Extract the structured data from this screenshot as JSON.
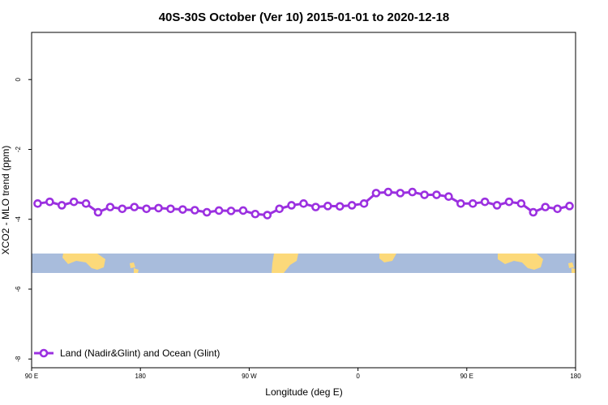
{
  "chart_data": {
    "type": "line",
    "title": "40S-30S October (Ver 10)   2015-01-01 to 2020-12-18",
    "xlabel": "Longitude (deg E)",
    "ylabel": "XCO2 - MLO trend (ppm)",
    "x_ticks": [
      "90 E",
      "180",
      "90 W",
      "0",
      "90 E",
      "180"
    ],
    "y_ticks": [
      "0",
      "-2",
      "-4",
      "-6",
      "-8"
    ],
    "ylim": [
      -8.25,
      1.35
    ],
    "legend": {
      "position": "bottom-left"
    },
    "colors": {
      "series": "#9b30e0",
      "ocean": "#a8bcdc",
      "land": "#fcd97a"
    },
    "series": [
      {
        "name": "Land (Nadir&Glint) and Ocean (Glint)",
        "x": [
          95,
          105,
          115,
          125,
          135,
          145,
          155,
          165,
          175,
          185,
          195,
          205,
          215,
          225,
          235,
          245,
          255,
          265,
          275,
          285,
          295,
          305,
          315,
          325,
          335,
          345,
          355,
          365,
          375,
          385,
          395,
          405,
          415,
          425,
          435,
          445,
          455,
          465,
          475,
          485,
          495,
          505,
          515,
          525,
          535
        ],
        "y": [
          -3.55,
          -3.5,
          -3.6,
          -3.5,
          -3.55,
          -3.8,
          -3.65,
          -3.7,
          -3.65,
          -3.7,
          -3.68,
          -3.7,
          -3.72,
          -3.74,
          -3.8,
          -3.75,
          -3.76,
          -3.75,
          -3.85,
          -3.88,
          -3.7,
          -3.6,
          -3.55,
          -3.65,
          -3.62,
          -3.63,
          -3.6,
          -3.55,
          -3.25,
          -3.22,
          -3.25,
          -3.22,
          -3.3,
          -3.3,
          -3.35,
          -3.55,
          -3.55,
          -3.5,
          -3.6,
          -3.5,
          -3.55,
          -3.8,
          -3.65,
          -3.7,
          -3.62
        ]
      }
    ]
  }
}
